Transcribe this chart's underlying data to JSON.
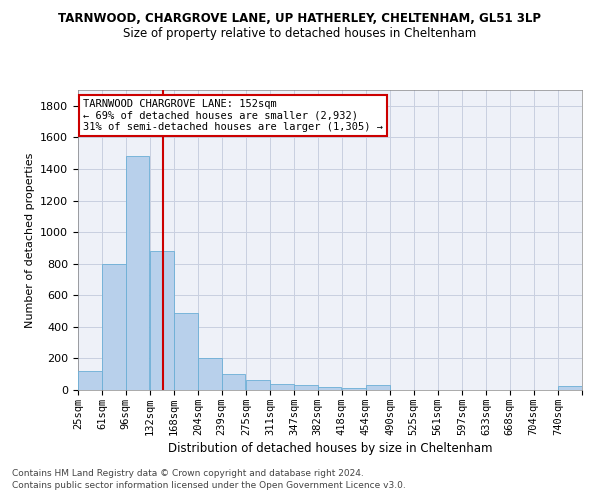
{
  "title1": "TARNWOOD, CHARGROVE LANE, UP HATHERLEY, CHELTENHAM, GL51 3LP",
  "title2": "Size of property relative to detached houses in Cheltenham",
  "xlabel": "Distribution of detached houses by size in Cheltenham",
  "ylabel": "Number of detached properties",
  "footnote1": "Contains HM Land Registry data © Crown copyright and database right 2024.",
  "footnote2": "Contains public sector information licensed under the Open Government Licence v3.0.",
  "property_size": 152,
  "property_label": "TARNWOOD CHARGROVE LANE: 152sqm",
  "smaller_pct": 69,
  "smaller_count": 2932,
  "larger_pct": 31,
  "larger_count": 1305,
  "bin_labels": [
    "25sqm",
    "61sqm",
    "96sqm",
    "132sqm",
    "168sqm",
    "204sqm",
    "239sqm",
    "275sqm",
    "311sqm",
    "347sqm",
    "382sqm",
    "418sqm",
    "454sqm",
    "490sqm",
    "525sqm",
    "561sqm",
    "597sqm",
    "633sqm",
    "668sqm",
    "704sqm",
    "740sqm"
  ],
  "bin_edges": [
    25,
    61,
    96,
    132,
    168,
    204,
    239,
    275,
    311,
    347,
    382,
    418,
    454,
    490,
    525,
    561,
    597,
    633,
    668,
    704,
    740
  ],
  "bin_width": 36,
  "bar_values": [
    120,
    800,
    1480,
    880,
    490,
    200,
    100,
    65,
    40,
    30,
    20,
    10,
    30,
    0,
    0,
    0,
    0,
    0,
    0,
    0,
    25
  ],
  "bar_color": "#b8d0eb",
  "bar_edge_color": "#6baed6",
  "vline_x": 152,
  "vline_color": "#cc0000",
  "grid_color": "#c8cfe0",
  "bg_color": "#eef1f8",
  "ylim": [
    0,
    1900
  ],
  "yticks": [
    0,
    200,
    400,
    600,
    800,
    1000,
    1200,
    1400,
    1600,
    1800
  ],
  "annotation_box_color": "#cc0000"
}
